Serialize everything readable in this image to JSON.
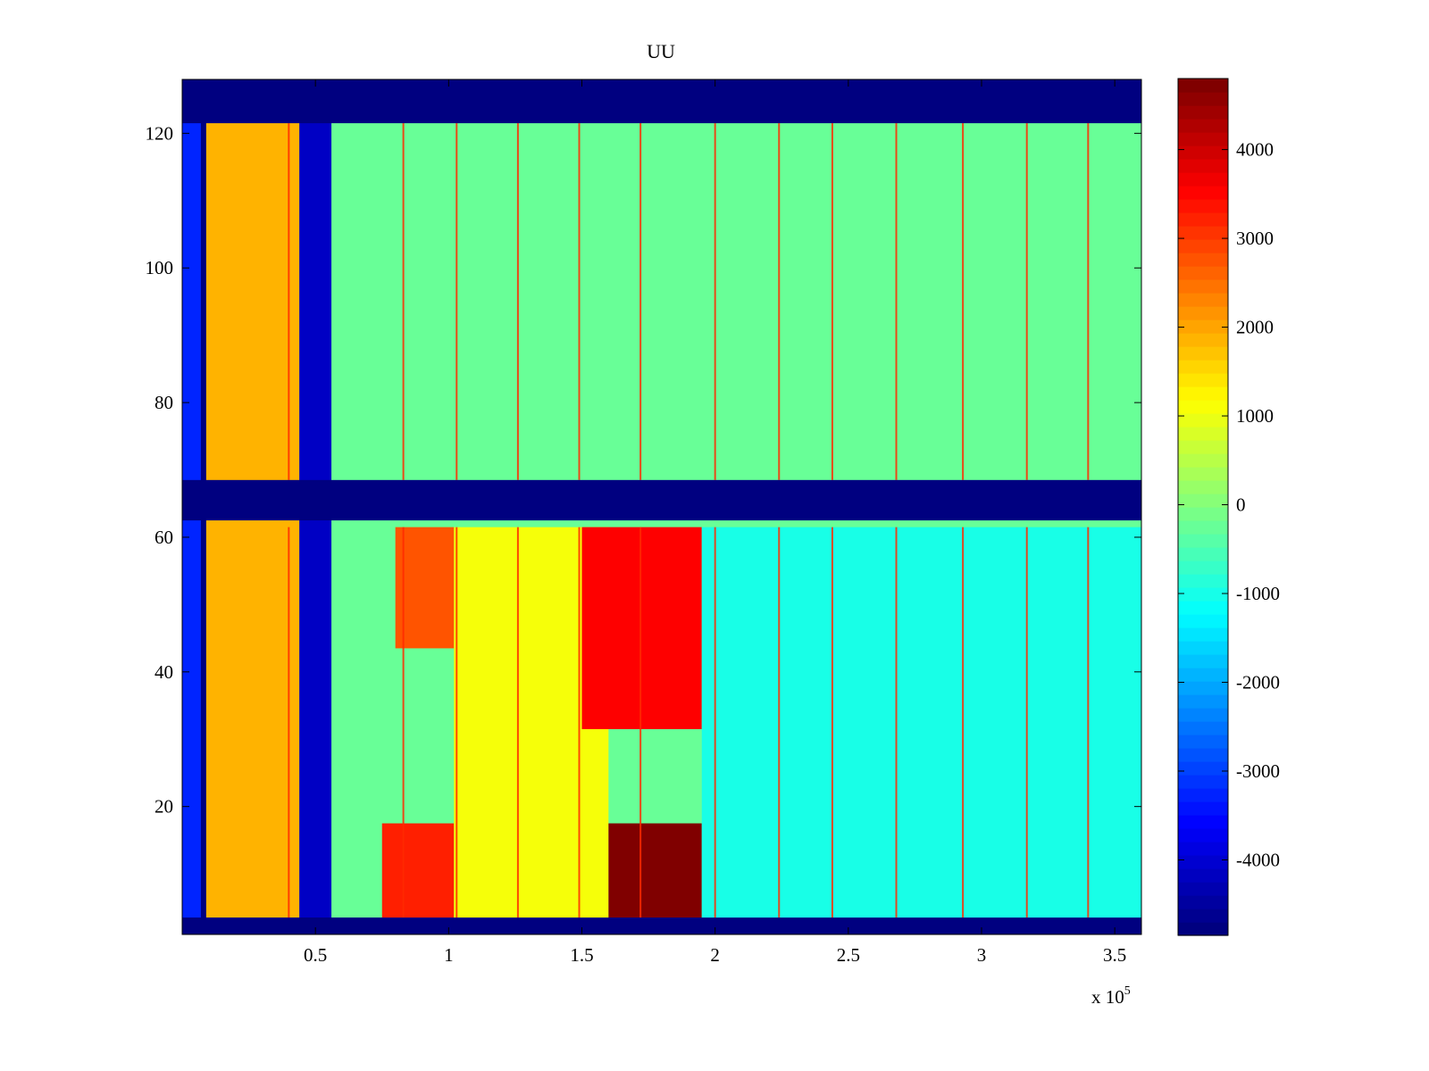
{
  "chart_data": {
    "type": "heatmap",
    "title": "UU",
    "xlabel": "",
    "ylabel": "",
    "x_range": [
      0,
      360000
    ],
    "y_range": [
      1,
      128
    ],
    "x_ticks": [
      50000,
      100000,
      150000,
      200000,
      250000,
      300000,
      350000
    ],
    "x_tick_labels": [
      "0.5",
      "1",
      "1.5",
      "2",
      "2.5",
      "3",
      "3.5"
    ],
    "x_exponent_label": "x 10",
    "x_exponent_power": "5",
    "y_ticks": [
      20,
      40,
      60,
      80,
      100,
      120
    ],
    "y_tick_labels": [
      "20",
      "40",
      "60",
      "80",
      "100",
      "120"
    ],
    "colorbar": {
      "range": [
        -4850,
        4800
      ],
      "ticks": [
        4000,
        3000,
        2000,
        1000,
        0,
        -1000,
        -2000,
        -3000,
        -4000
      ],
      "tick_labels": [
        "4000",
        "3000",
        "2000",
        "1000",
        "0",
        "-1000",
        "-2000",
        "-3000",
        "-4000"
      ],
      "colormap": "jet",
      "levels": 64
    },
    "masked_value": -4850,
    "masked_rows": [
      [
        1,
        3
      ],
      [
        63,
        68
      ],
      [
        122,
        128
      ]
    ],
    "regions": [
      {
        "x": [
          0,
          7000
        ],
        "y": [
          4,
          121
        ],
        "value": -3300
      },
      {
        "x": [
          9000,
          44000
        ],
        "y": [
          4,
          121
        ],
        "value": 1900
      },
      {
        "x": [
          44000,
          56000
        ],
        "y": [
          4,
          121
        ],
        "value": -4200
      },
      {
        "x": [
          56000,
          360000
        ],
        "y": [
          4,
          121
        ],
        "value": -250
      },
      {
        "x": [
          80000,
          102000
        ],
        "y": [
          44,
          61
        ],
        "value": 2800
      },
      {
        "x": [
          75000,
          102000
        ],
        "y": [
          4,
          17
        ],
        "value": 3300
      },
      {
        "x": [
          102000,
          160000
        ],
        "y": [
          4,
          61
        ],
        "value": 1100
      },
      {
        "x": [
          150000,
          195000
        ],
        "y": [
          32,
          61
        ],
        "value": 3600
      },
      {
        "x": [
          160000,
          195000
        ],
        "y": [
          4,
          17
        ],
        "value": 4800
      },
      {
        "x": [
          195000,
          360000
        ],
        "y": [
          4,
          61
        ],
        "value": -1000
      }
    ],
    "vertical_streaks_x": [
      40000,
      83000,
      103000,
      126000,
      149000,
      172000,
      200000,
      224000,
      244000,
      268000,
      293000,
      317000,
      340000
    ]
  },
  "colors": {
    "axis": "#000000",
    "background": "#ffffff"
  }
}
